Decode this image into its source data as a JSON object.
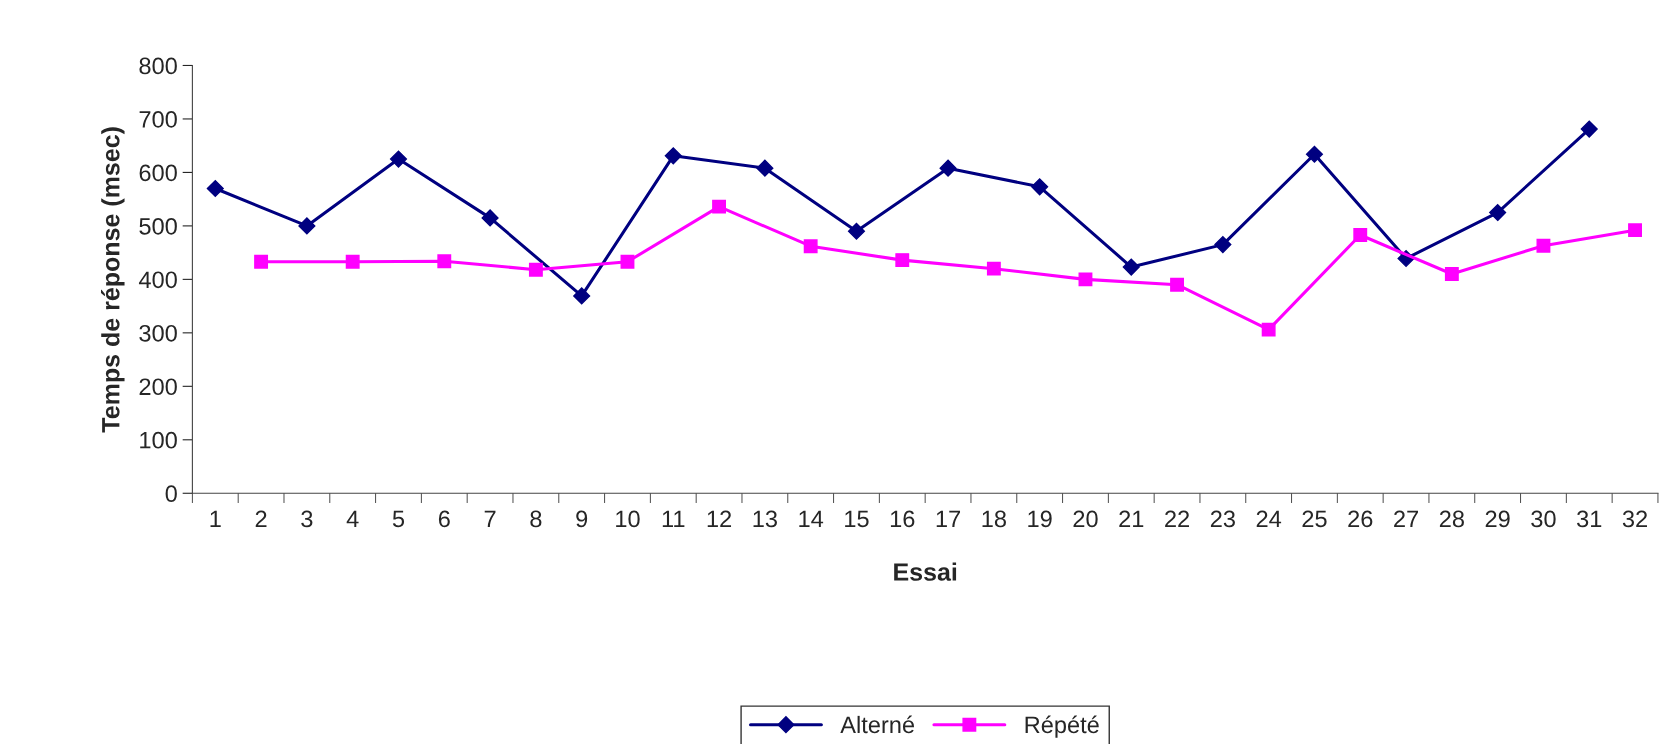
{
  "chart_data": {
    "type": "line",
    "xlabel": "Essai",
    "ylabel": "Temps de réponse (msec)",
    "categories": [
      "1",
      "2",
      "3",
      "4",
      "5",
      "6",
      "7",
      "8",
      "9",
      "10",
      "11",
      "12",
      "13",
      "14",
      "15",
      "16",
      "17",
      "18",
      "19",
      "20",
      "21",
      "22",
      "23",
      "24",
      "25",
      "26",
      "27",
      "28",
      "29",
      "30",
      "31",
      "32"
    ],
    "series": [
      {
        "name": "Alterné",
        "color": "#000080",
        "marker": "diamond",
        "values": [
          570,
          null,
          500,
          null,
          625,
          null,
          515,
          null,
          369,
          null,
          631,
          null,
          608,
          null,
          490,
          null,
          608,
          null,
          573,
          null,
          423,
          null,
          465,
          null,
          634,
          null,
          439,
          null,
          525,
          null,
          681,
          null
        ]
      },
      {
        "name": "Répété",
        "color": "#ff00ff",
        "marker": "square",
        "values": [
          null,
          433,
          null,
          433,
          null,
          434,
          null,
          418,
          null,
          433,
          null,
          536,
          null,
          462,
          null,
          436,
          null,
          420,
          null,
          400,
          null,
          390,
          null,
          306,
          null,
          483,
          null,
          410,
          null,
          463,
          null,
          492
        ]
      }
    ],
    "ylim": [
      0,
      800
    ],
    "yticks": [
      0,
      100,
      200,
      300,
      400,
      500,
      600,
      700,
      800
    ],
    "grid": false,
    "legend": "bottom"
  }
}
